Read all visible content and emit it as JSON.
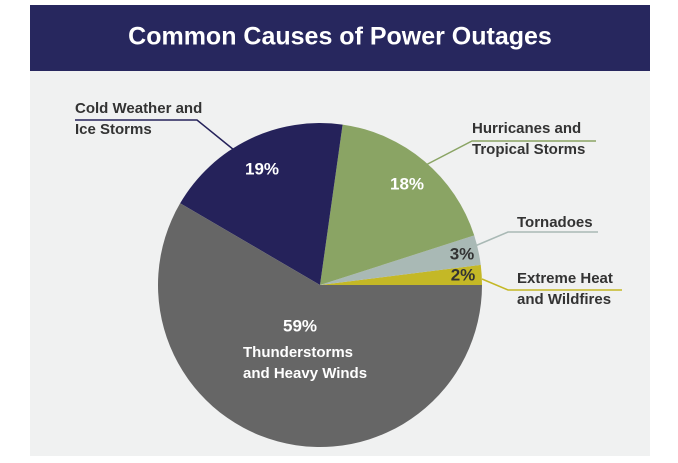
{
  "chart_data": {
    "type": "pie",
    "title": "Common Causes of Power Outages",
    "categories": [
      "Extreme Heat and Wildfires",
      "Tornadoes",
      "Hurricanes and Tropical Storms",
      "Cold Weather and Ice Storms",
      "Thunderstorms and Heavy Winds"
    ],
    "values": [
      2,
      3,
      18,
      19,
      59
    ],
    "value_labels": [
      "2%",
      "3%",
      "18%",
      "19%",
      "59%"
    ],
    "colors": [
      "#c4b826",
      "#a9b9b5",
      "#8aa464",
      "#25225a",
      "#666666"
    ]
  }
}
